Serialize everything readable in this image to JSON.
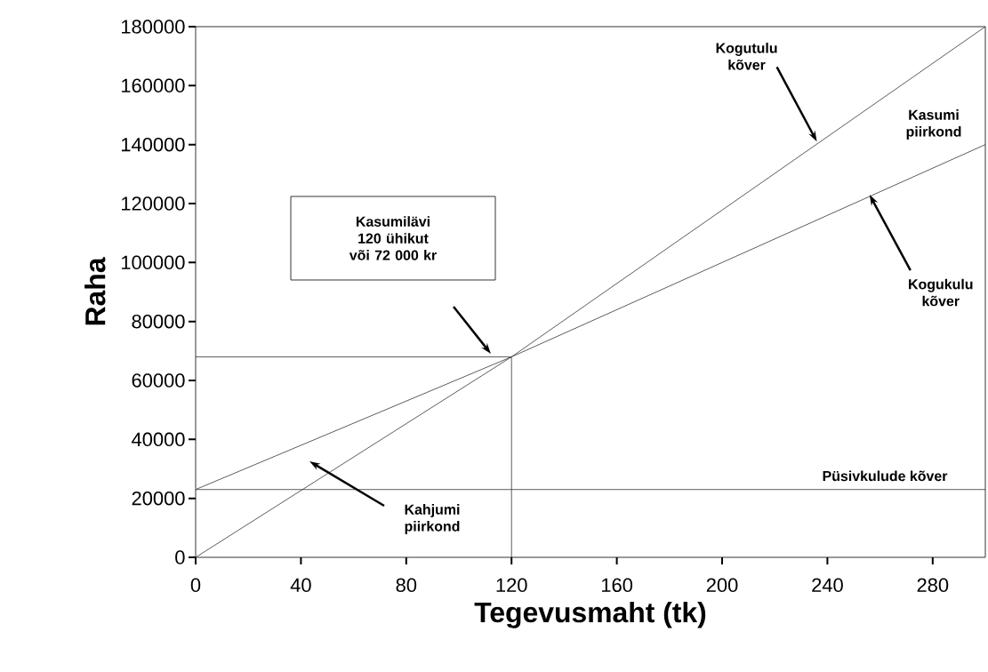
{
  "chart_data": {
    "type": "line",
    "xlabel": "Tegevusmaht (tk)",
    "ylabel": "Raha",
    "xlim": [
      0,
      300
    ],
    "xticks": [
      0,
      40,
      80,
      120,
      160,
      200,
      240,
      280
    ],
    "ylim": [
      0,
      180000
    ],
    "yticks": [
      0,
      20000,
      40000,
      60000,
      80000,
      100000,
      120000,
      140000,
      160000,
      180000
    ],
    "series": [
      {
        "color": "#333333",
        "x": [
          0,
          120,
          300
        ],
        "values": [
          0,
          68000,
          180000
        ]
      },
      {
        "color": "#333333",
        "x": [
          0,
          120,
          300
        ],
        "values": [
          23000,
          68000,
          140000
        ]
      },
      {
        "color": "#333333",
        "x": [
          0,
          120
        ],
        "values": [
          68000,
          68000
        ]
      },
      {
        "color": "#333333",
        "x": [
          120,
          120
        ],
        "values": [
          0,
          68000
        ]
      }
    ],
    "ref_lines": [
      {
        "axis": "y",
        "value": 23000,
        "label": "Püsivkulude kõver",
        "color": "#333333"
      }
    ],
    "annotations": [
      {
        "text": "Kogutulu kõver",
        "x": 236,
        "y": 141000
      },
      "Kasumi piirkond",
      {
        "text": "Kogukulu kõver",
        "x": 256,
        "y": 123000
      },
      "Kasumilävi 120 ühikut või 72 000 kr",
      "Kahjumi piirkond"
    ]
  }
}
